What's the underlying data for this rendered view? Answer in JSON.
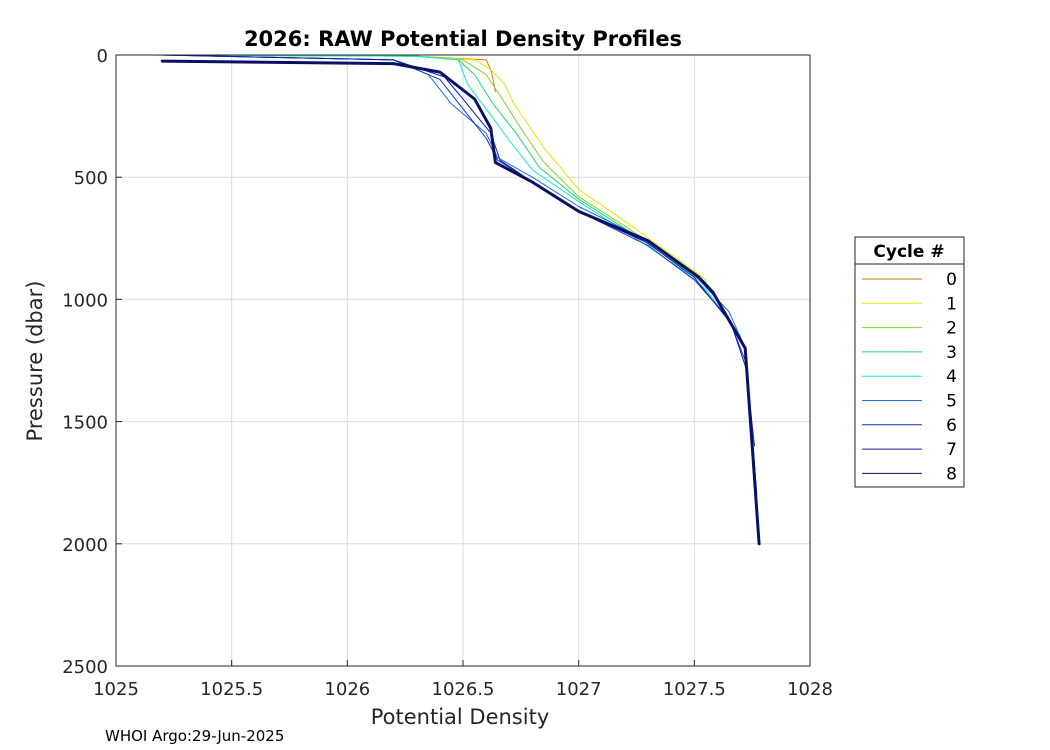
{
  "chart_data": {
    "type": "line",
    "title": "2026: RAW Potential Density Profiles",
    "xlabel": "Potential Density",
    "ylabel": "Pressure (dbar)",
    "xlim": [
      1025,
      1028
    ],
    "ylim": [
      0,
      2500
    ],
    "y_reversed": true,
    "grid": true,
    "x_ticks": [
      "1025",
      "1025.5",
      "1026",
      "1026.5",
      "1027",
      "1027.5",
      "1028"
    ],
    "y_ticks": [
      "0",
      "500",
      "1000",
      "1500",
      "2000",
      "2500"
    ],
    "legend": {
      "title": "Cycle #",
      "placement": "outside-right"
    },
    "footer": "WHOI Argo:29-Jun-2025",
    "series": [
      {
        "name": "0",
        "color": "#d97a00",
        "x": [
          1025.15,
          1026.3,
          1026.6,
          1026.62,
          1026.63,
          1026.64
        ],
        "y": [
          0,
          5,
          20,
          60,
          100,
          150
        ]
      },
      {
        "name": "1",
        "color": "#e6e600",
        "x": [
          1025.15,
          1026.3,
          1026.55,
          1026.62,
          1026.68,
          1026.72,
          1026.85,
          1027.0,
          1027.2,
          1027.45,
          1027.55
        ],
        "y": [
          0,
          5,
          20,
          60,
          120,
          200,
          380,
          550,
          680,
          850,
          920
        ]
      },
      {
        "name": "2",
        "color": "#7fd61f",
        "x": [
          1025.15,
          1026.3,
          1026.5,
          1026.6,
          1026.67,
          1026.75,
          1026.85,
          1027.0,
          1027.2,
          1027.45,
          1027.55
        ],
        "y": [
          0,
          5,
          20,
          80,
          180,
          300,
          440,
          580,
          700,
          860,
          930
        ]
      },
      {
        "name": "3",
        "color": "#1fd67a",
        "x": [
          1025.15,
          1026.3,
          1026.48,
          1026.55,
          1026.63,
          1026.73,
          1026.83,
          1027.0,
          1027.2,
          1027.45,
          1027.55
        ],
        "y": [
          0,
          5,
          20,
          80,
          200,
          320,
          460,
          590,
          710,
          870,
          940
        ]
      },
      {
        "name": "4",
        "color": "#19e6d9",
        "x": [
          1025.15,
          1026.3,
          1026.48,
          1026.52,
          1026.6,
          1026.7,
          1026.8,
          1027.0,
          1027.2,
          1027.45,
          1027.55,
          1027.7
        ],
        "y": [
          0,
          5,
          20,
          120,
          220,
          350,
          470,
          600,
          720,
          880,
          960,
          1150
        ]
      },
      {
        "name": "5",
        "color": "#1a6fe0",
        "x": [
          1025.2,
          1026.2,
          1026.35,
          1026.45,
          1026.6,
          1026.65,
          1026.8,
          1027.0,
          1027.3,
          1027.5,
          1027.65,
          1027.72,
          1027.73
        ],
        "y": [
          0,
          20,
          80,
          200,
          320,
          420,
          500,
          620,
          760,
          900,
          1050,
          1200,
          1350
        ]
      },
      {
        "name": "6",
        "color": "#1433b8",
        "x": [
          1025.2,
          1026.2,
          1026.4,
          1026.5,
          1026.6,
          1026.65,
          1026.8,
          1027.0,
          1027.3,
          1027.5,
          1027.65,
          1027.72,
          1027.76
        ],
        "y": [
          0,
          20,
          100,
          220,
          340,
          430,
          520,
          640,
          780,
          920,
          1080,
          1250,
          1600
        ]
      },
      {
        "name": "7",
        "color": "#0d1f9e",
        "x": [
          1025.2,
          1026.2,
          1026.42,
          1026.5,
          1026.62,
          1026.66,
          1026.8,
          1027.0,
          1027.3,
          1027.5,
          1027.66,
          1027.73,
          1027.77
        ],
        "y": [
          0,
          20,
          90,
          180,
          320,
          430,
          520,
          640,
          770,
          910,
          1100,
          1300,
          1800
        ]
      },
      {
        "name": "8",
        "color": "#0a1066",
        "x": [
          1025.2,
          1026.2,
          1026.4,
          1026.55,
          1026.62,
          1026.64,
          1026.8,
          1027.0,
          1027.3,
          1027.52,
          1027.58,
          1027.72,
          1027.75,
          1027.78
        ],
        "y": [
          25,
          35,
          70,
          180,
          300,
          440,
          520,
          640,
          760,
          910,
          970,
          1200,
          1600,
          2000
        ]
      }
    ]
  }
}
